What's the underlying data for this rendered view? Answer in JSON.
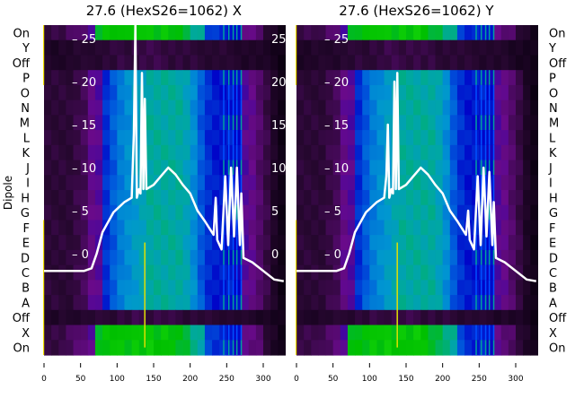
{
  "chart_data": {
    "type": "heatmap",
    "ylabel": "Dipole",
    "row_labels": [
      "On",
      "Y",
      "Off",
      "P",
      "O",
      "N",
      "M",
      "L",
      "K",
      "J",
      "I",
      "H",
      "G",
      "F",
      "E",
      "D",
      "C",
      "B",
      "A",
      "Off",
      "X",
      "On"
    ],
    "row_kinds": [
      "on",
      "off",
      "off",
      "main",
      "main",
      "main",
      "main",
      "main",
      "main",
      "main",
      "main",
      "main",
      "main",
      "main",
      "main",
      "main",
      "main",
      "main",
      "main",
      "off",
      "on",
      "on"
    ],
    "x_ticks": [
      0,
      50,
      100,
      150,
      200,
      250,
      300
    ],
    "xlim": [
      0,
      328
    ],
    "overlay_y_ticks": [
      0,
      5,
      10,
      15,
      20,
      25
    ],
    "overlay_ylim": [
      -5.5,
      26.7
    ],
    "bin_width": 10,
    "profiles": {
      "main": [
        0.1,
        0.1,
        0.1,
        0.1,
        0.12,
        0.14,
        0.2,
        0.22,
        0.34,
        0.38,
        0.42,
        0.44,
        0.46,
        0.48,
        0.5,
        0.5,
        0.5,
        0.5,
        0.5,
        0.48,
        0.44,
        0.38,
        0.34,
        0.32,
        0.32,
        0.32,
        0.3,
        0.22,
        0.2,
        0.16,
        0.12,
        0.06,
        0.02
      ],
      "on": [
        0.12,
        0.12,
        0.12,
        0.14,
        0.16,
        0.18,
        0.22,
        0.58,
        0.6,
        0.6,
        0.62,
        0.6,
        0.62,
        0.6,
        0.62,
        0.6,
        0.62,
        0.6,
        0.58,
        0.56,
        0.52,
        0.5,
        0.36,
        0.34,
        0.33,
        0.33,
        0.3,
        0.2,
        0.18,
        0.16,
        0.1,
        0.06,
        0.02
      ],
      "off": [
        0.06,
        0.06,
        0.07,
        0.07,
        0.08,
        0.08,
        0.09,
        0.09,
        0.1,
        0.1,
        0.11,
        0.11,
        0.12,
        0.12,
        0.12,
        0.12,
        0.12,
        0.11,
        0.11,
        0.1,
        0.1,
        0.1,
        0.09,
        0.09,
        0.09,
        0.08,
        0.08,
        0.07,
        0.07,
        0.06,
        0.05,
        0.04,
        0.02
      ]
    },
    "panels": [
      {
        "title": "27.6 (HexS26=1062) X",
        "curve": [
          [
            0,
            -2
          ],
          [
            55,
            -2
          ],
          [
            65,
            -1.7
          ],
          [
            72,
            0
          ],
          [
            80,
            2.5
          ],
          [
            95,
            4.8
          ],
          [
            110,
            6
          ],
          [
            120,
            6.5
          ],
          [
            123,
            14
          ],
          [
            125,
            27
          ],
          [
            127,
            6.5
          ],
          [
            130,
            7.5
          ],
          [
            132,
            7
          ],
          [
            134,
            21
          ],
          [
            136,
            7.5
          ],
          [
            138,
            18
          ],
          [
            140,
            7.5
          ],
          [
            150,
            8
          ],
          [
            160,
            9
          ],
          [
            170,
            10
          ],
          [
            180,
            9.2
          ],
          [
            190,
            8
          ],
          [
            200,
            7
          ],
          [
            210,
            5
          ],
          [
            220,
            3.8
          ],
          [
            232,
            2.2
          ],
          [
            235,
            6.5
          ],
          [
            237,
            1.6
          ],
          [
            243,
            0.5
          ],
          [
            248,
            9
          ],
          [
            252,
            1
          ],
          [
            256,
            10
          ],
          [
            260,
            2
          ],
          [
            264,
            10
          ],
          [
            268,
            1
          ],
          [
            270,
            7
          ],
          [
            273,
            -0.5
          ],
          [
            285,
            -1
          ],
          [
            300,
            -2
          ],
          [
            315,
            -3
          ],
          [
            328,
            -3.2
          ]
        ]
      },
      {
        "title": "27.6 (HexS26=1062) Y",
        "curve": [
          [
            0,
            -2
          ],
          [
            55,
            -2
          ],
          [
            65,
            -1.7
          ],
          [
            72,
            0
          ],
          [
            80,
            2.5
          ],
          [
            95,
            4.8
          ],
          [
            110,
            6
          ],
          [
            120,
            6.5
          ],
          [
            123,
            9
          ],
          [
            125,
            15
          ],
          [
            127,
            6.5
          ],
          [
            130,
            7.5
          ],
          [
            132,
            7
          ],
          [
            134,
            20
          ],
          [
            136,
            7.5
          ],
          [
            138,
            21
          ],
          [
            140,
            7.5
          ],
          [
            150,
            8
          ],
          [
            160,
            9
          ],
          [
            170,
            10
          ],
          [
            180,
            9.2
          ],
          [
            190,
            8
          ],
          [
            200,
            7
          ],
          [
            210,
            5
          ],
          [
            220,
            3.8
          ],
          [
            232,
            2.2
          ],
          [
            235,
            5
          ],
          [
            237,
            1.6
          ],
          [
            243,
            0.5
          ],
          [
            248,
            9
          ],
          [
            252,
            1
          ],
          [
            256,
            10
          ],
          [
            260,
            2
          ],
          [
            264,
            9.5
          ],
          [
            268,
            1
          ],
          [
            270,
            6
          ],
          [
            273,
            -0.5
          ],
          [
            285,
            -1
          ],
          [
            300,
            -2
          ],
          [
            315,
            -3
          ],
          [
            328,
            -3.2
          ]
        ]
      }
    ]
  }
}
